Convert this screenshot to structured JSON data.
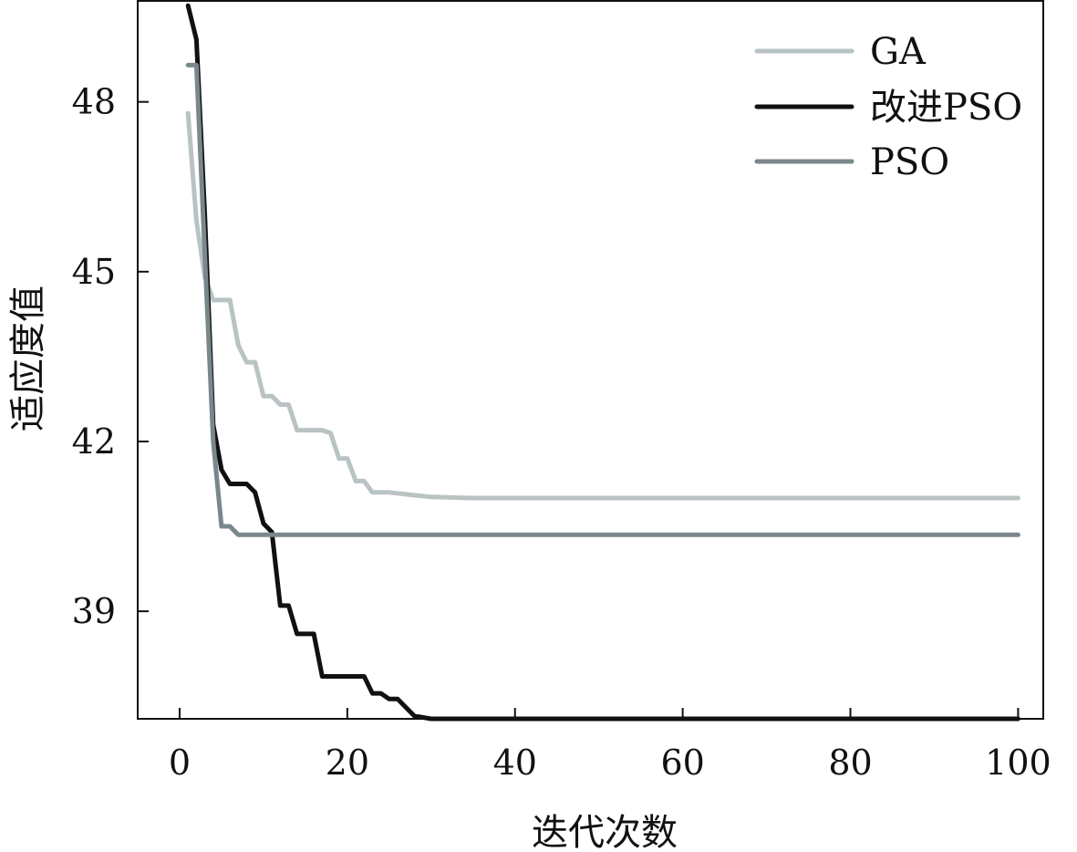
{
  "chart_data": {
    "type": "line",
    "title": "",
    "xlabel": "迭代次数",
    "ylabel": "适应度值",
    "xlim": [
      -5,
      103
    ],
    "ylim": [
      37.1,
      49.8
    ],
    "xticks": [
      0,
      20,
      40,
      60,
      80,
      100
    ],
    "yticks": [
      39,
      42,
      45,
      48
    ],
    "xtick_labels": [
      "0",
      "20",
      "40",
      "60",
      "80",
      "100"
    ],
    "ytick_labels": [
      "39",
      "42",
      "45",
      "48"
    ],
    "grid": false,
    "legend_position": "top-right",
    "series": [
      {
        "name": "GA",
        "color": "#b9c3c4",
        "points": [
          [
            1,
            47.8
          ],
          [
            2,
            45.9
          ],
          [
            3,
            44.9
          ],
          [
            4,
            44.5
          ],
          [
            6,
            44.5
          ],
          [
            7,
            43.7
          ],
          [
            8,
            43.4
          ],
          [
            9,
            43.4
          ],
          [
            10,
            42.8
          ],
          [
            11,
            42.8
          ],
          [
            12,
            42.65
          ],
          [
            13,
            42.65
          ],
          [
            14,
            42.2
          ],
          [
            17,
            42.2
          ],
          [
            18,
            42.15
          ],
          [
            19,
            41.7
          ],
          [
            20,
            41.7
          ],
          [
            21,
            41.3
          ],
          [
            22,
            41.3
          ],
          [
            23,
            41.1
          ],
          [
            25,
            41.1
          ],
          [
            28,
            41.05
          ],
          [
            30,
            41.02
          ],
          [
            35,
            41.0
          ],
          [
            100,
            41.0
          ]
        ]
      },
      {
        "name": "改进PSO",
        "color": "#111111",
        "points": [
          [
            1,
            49.7
          ],
          [
            2,
            49.1
          ],
          [
            3,
            46.0
          ],
          [
            4,
            42.3
          ],
          [
            5,
            41.5
          ],
          [
            6,
            41.25
          ],
          [
            8,
            41.25
          ],
          [
            9,
            41.1
          ],
          [
            10,
            40.55
          ],
          [
            11,
            40.4
          ],
          [
            12,
            39.1
          ],
          [
            13,
            39.1
          ],
          [
            14,
            38.6
          ],
          [
            16,
            38.6
          ],
          [
            17,
            37.85
          ],
          [
            22,
            37.85
          ],
          [
            23,
            37.55
          ],
          [
            24,
            37.55
          ],
          [
            25,
            37.45
          ],
          [
            26,
            37.45
          ],
          [
            27,
            37.3
          ],
          [
            28,
            37.15
          ],
          [
            30,
            37.1
          ],
          [
            100,
            37.1
          ]
        ]
      },
      {
        "name": "PSO",
        "color": "#7a878b",
        "points": [
          [
            1,
            48.65
          ],
          [
            2,
            48.65
          ],
          [
            3,
            45.3
          ],
          [
            4,
            42.0
          ],
          [
            5,
            40.5
          ],
          [
            6,
            40.5
          ],
          [
            7,
            40.35
          ],
          [
            100,
            40.35
          ]
        ]
      }
    ]
  }
}
